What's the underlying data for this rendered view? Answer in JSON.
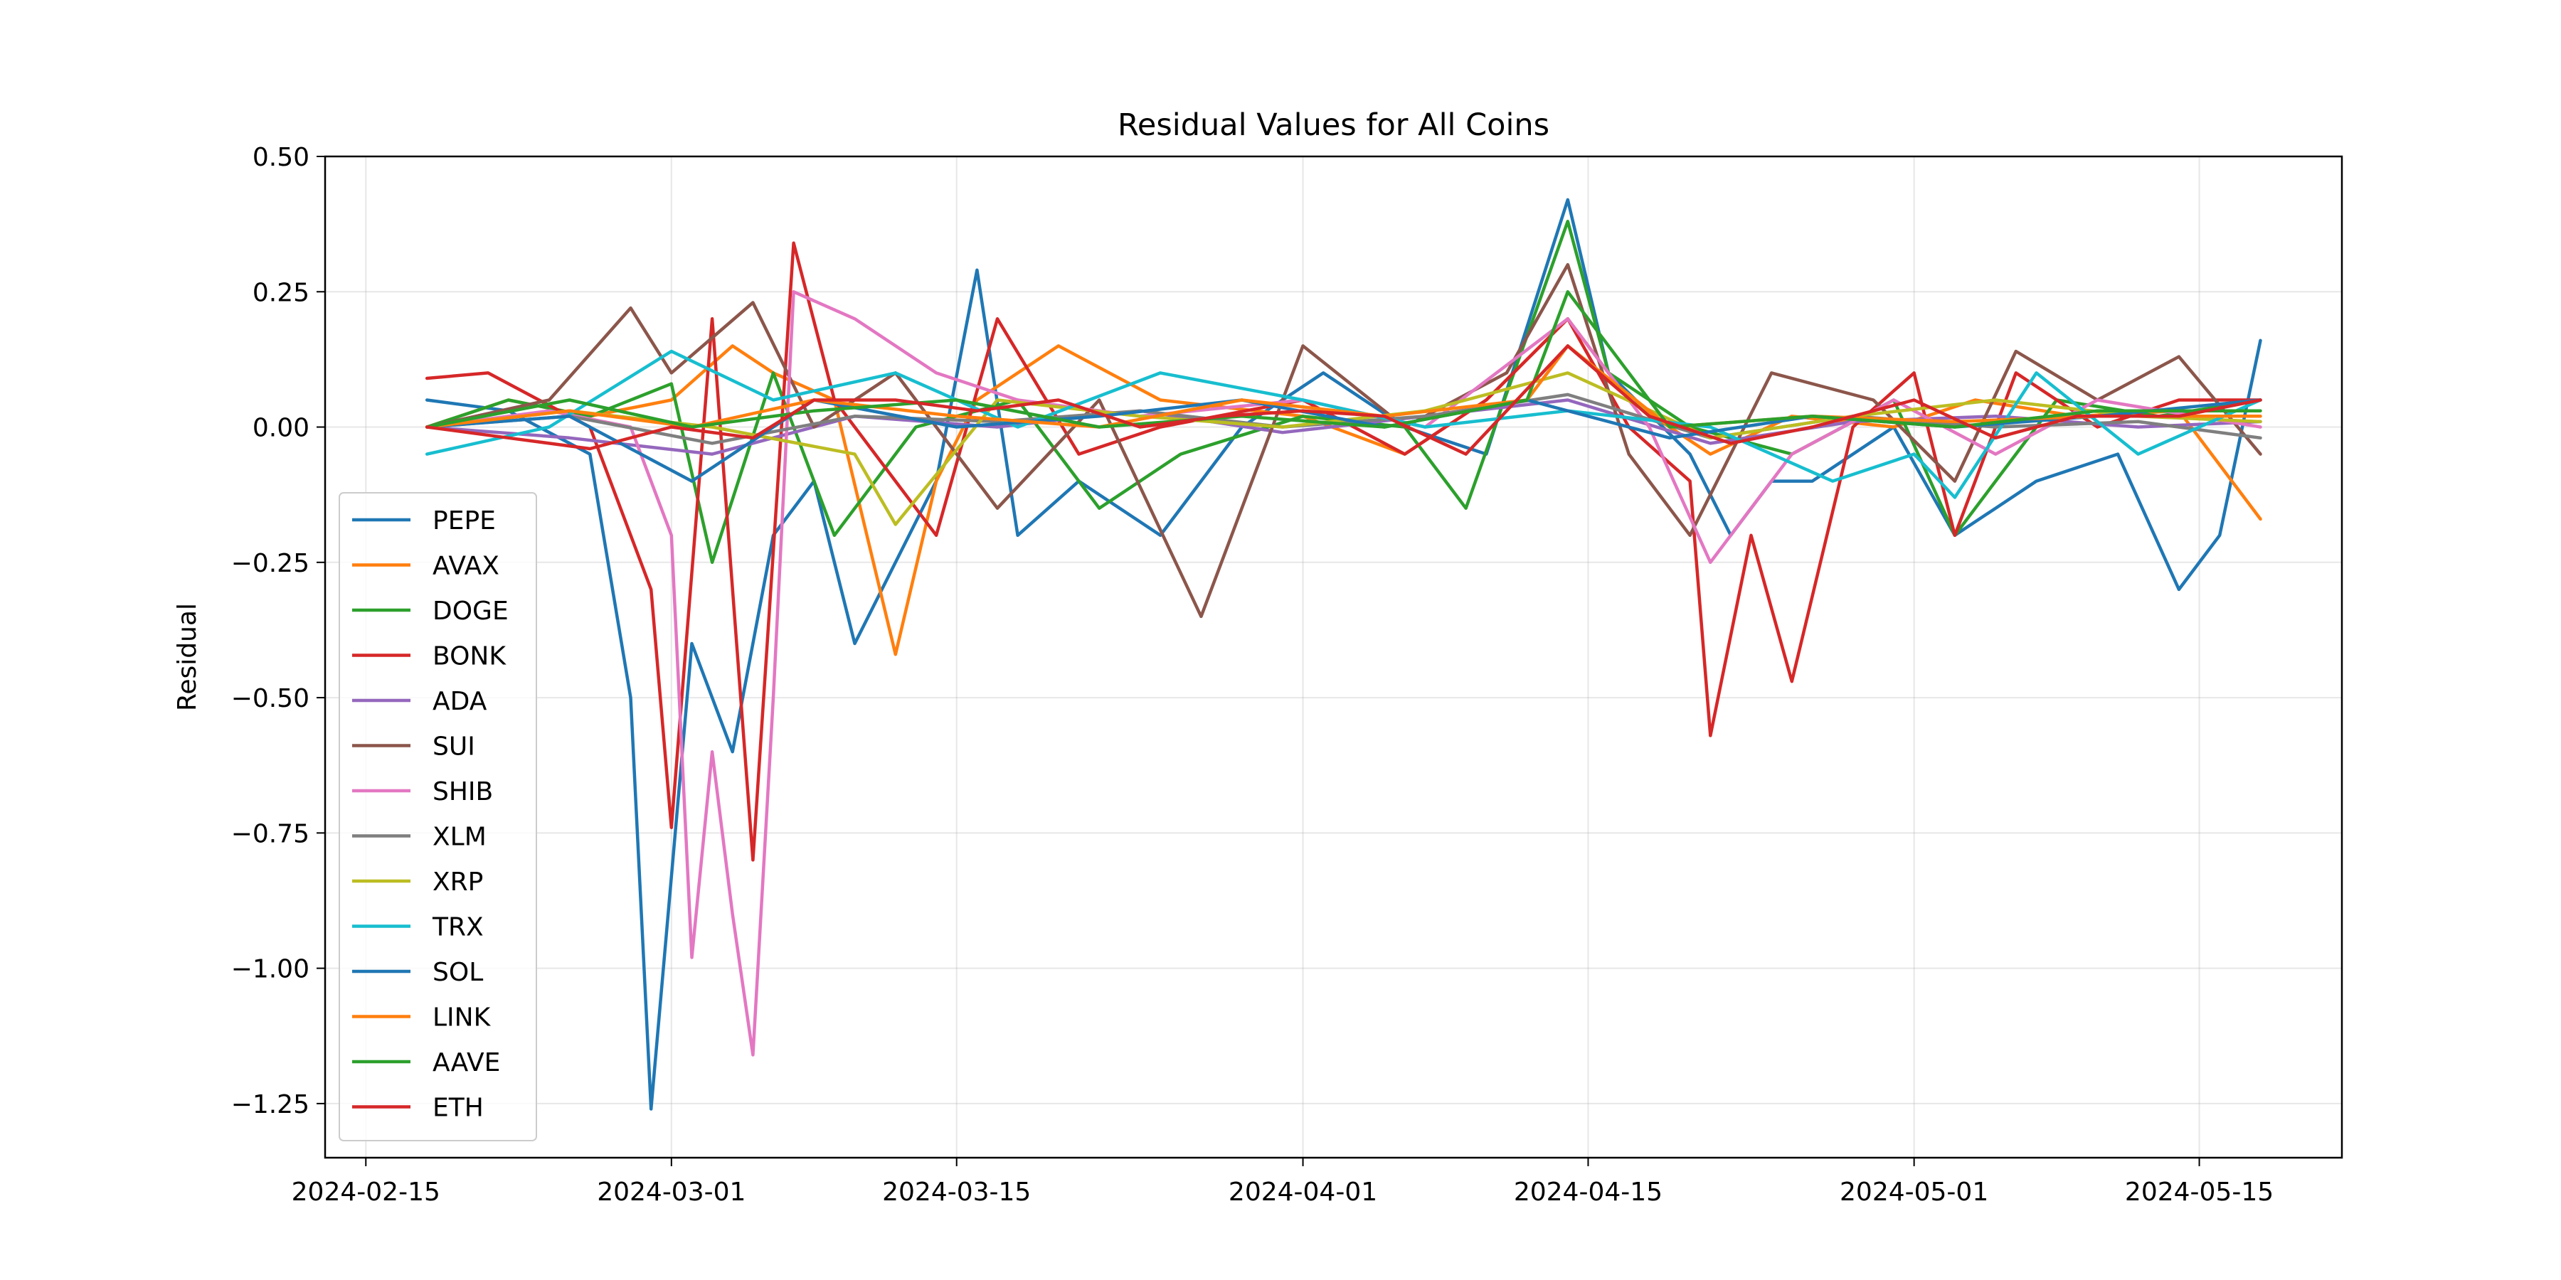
{
  "chart_data": {
    "type": "line",
    "title": "Residual Values for All Coins",
    "xlabel": "",
    "ylabel": "Residual",
    "x_axis_type": "date",
    "xlim": [
      "2024-02-13",
      "2024-05-22"
    ],
    "ylim": [
      -1.35,
      0.5
    ],
    "x_ticks": [
      "2024-02-15",
      "2024-03-01",
      "2024-03-15",
      "2024-04-01",
      "2024-04-15",
      "2024-05-01",
      "2024-05-15"
    ],
    "y_ticks": [
      0.5,
      0.25,
      0.0,
      -0.25,
      -0.5,
      -0.75,
      -1.0,
      -1.25
    ],
    "y_tick_labels": [
      "0.50",
      "0.25",
      "0.00",
      "−0.25",
      "−0.50",
      "−0.75",
      "−1.00",
      "−1.25"
    ],
    "grid": true,
    "legend_position": "lower-left",
    "series": [
      {
        "name": "PEPE",
        "color": "#1f77b4",
        "x": [
          "2024-02-18",
          "2024-02-22",
          "2024-02-26",
          "2024-02-28",
          "2024-02-29",
          "2024-03-02",
          "2024-03-04",
          "2024-03-06",
          "2024-03-08",
          "2024-03-10",
          "2024-03-14",
          "2024-03-16",
          "2024-03-18",
          "2024-03-21",
          "2024-03-25",
          "2024-03-29",
          "2024-04-02",
          "2024-04-06",
          "2024-04-10",
          "2024-04-14",
          "2024-04-16",
          "2024-04-20",
          "2024-04-22",
          "2024-04-24",
          "2024-04-26",
          "2024-04-30",
          "2024-05-03",
          "2024-05-07",
          "2024-05-11",
          "2024-05-14",
          "2024-05-16",
          "2024-05-18"
        ],
        "y": [
          0.05,
          0.03,
          -0.05,
          -0.5,
          -1.26,
          -0.4,
          -0.6,
          -0.2,
          -0.1,
          -0.4,
          -0.1,
          0.29,
          -0.2,
          -0.1,
          -0.2,
          0.0,
          0.1,
          0.0,
          -0.05,
          0.42,
          0.1,
          -0.05,
          -0.2,
          -0.1,
          -0.1,
          0.0,
          -0.2,
          -0.1,
          -0.05,
          -0.3,
          -0.2,
          0.16
        ]
      },
      {
        "name": "AVAX",
        "color": "#ff7f0e",
        "x": [
          "2024-02-18",
          "2024-02-22",
          "2024-02-26",
          "2024-03-01",
          "2024-03-04",
          "2024-03-06",
          "2024-03-09",
          "2024-03-12",
          "2024-03-14",
          "2024-03-16",
          "2024-03-20",
          "2024-03-25",
          "2024-04-01",
          "2024-04-06",
          "2024-04-10",
          "2024-04-14",
          "2024-04-17",
          "2024-04-21",
          "2024-04-25",
          "2024-04-30",
          "2024-05-04",
          "2024-05-09",
          "2024-05-14",
          "2024-05-18"
        ],
        "y": [
          0.0,
          0.05,
          0.02,
          0.05,
          0.15,
          0.1,
          0.05,
          -0.42,
          -0.1,
          0.05,
          0.15,
          0.05,
          0.02,
          -0.05,
          0.05,
          0.2,
          0.05,
          -0.05,
          0.02,
          0.0,
          0.05,
          0.02,
          0.03,
          -0.17
        ]
      },
      {
        "name": "DOGE",
        "color": "#2ca02c",
        "x": [
          "2024-02-18",
          "2024-02-22",
          "2024-02-26",
          "2024-03-01",
          "2024-03-03",
          "2024-03-06",
          "2024-03-09",
          "2024-03-13",
          "2024-03-18",
          "2024-03-22",
          "2024-03-26",
          "2024-04-01",
          "2024-04-06",
          "2024-04-09",
          "2024-04-14",
          "2024-04-16",
          "2024-04-20",
          "2024-04-25",
          "2024-04-30",
          "2024-05-03",
          "2024-05-08",
          "2024-05-13",
          "2024-05-18"
        ],
        "y": [
          0.0,
          0.05,
          0.02,
          0.08,
          -0.25,
          0.1,
          -0.2,
          0.0,
          0.05,
          -0.15,
          -0.05,
          0.02,
          0.0,
          -0.15,
          0.38,
          0.1,
          0.0,
          -0.05,
          0.05,
          -0.2,
          0.05,
          0.02,
          0.05
        ]
      },
      {
        "name": "BONK",
        "color": "#d62728",
        "x": [
          "2024-02-18",
          "2024-02-21",
          "2024-02-26",
          "2024-02-29",
          "2024-03-01",
          "2024-03-03",
          "2024-03-05",
          "2024-03-07",
          "2024-03-09",
          "2024-03-14",
          "2024-03-17",
          "2024-03-21",
          "2024-03-25",
          "2024-04-01",
          "2024-04-06",
          "2024-04-10",
          "2024-04-14",
          "2024-04-17",
          "2024-04-20",
          "2024-04-21",
          "2024-04-23",
          "2024-04-25",
          "2024-04-28",
          "2024-05-01",
          "2024-05-03",
          "2024-05-06",
          "2024-05-10",
          "2024-05-14",
          "2024-05-18"
        ],
        "y": [
          0.09,
          0.1,
          0.0,
          -0.3,
          -0.74,
          0.2,
          -0.8,
          0.34,
          0.05,
          -0.2,
          0.2,
          -0.05,
          0.0,
          0.05,
          -0.05,
          0.05,
          0.2,
          0.0,
          -0.1,
          -0.57,
          -0.2,
          -0.47,
          0.0,
          0.1,
          -0.2,
          0.1,
          0.0,
          0.05,
          0.05
        ]
      },
      {
        "name": "ADA",
        "color": "#9467bd",
        "x": [
          "2024-02-18",
          "2024-02-25",
          "2024-03-03",
          "2024-03-10",
          "2024-03-17",
          "2024-03-24",
          "2024-03-31",
          "2024-04-07",
          "2024-04-14",
          "2024-04-21",
          "2024-04-28",
          "2024-05-05",
          "2024-05-12",
          "2024-05-18"
        ],
        "y": [
          0.0,
          -0.02,
          -0.05,
          0.02,
          0.0,
          0.03,
          -0.01,
          0.02,
          0.05,
          -0.03,
          0.01,
          0.02,
          0.0,
          0.01
        ]
      },
      {
        "name": "SUI",
        "color": "#8c564b",
        "x": [
          "2024-02-18",
          "2024-02-24",
          "2024-02-28",
          "2024-03-01",
          "2024-03-05",
          "2024-03-08",
          "2024-03-12",
          "2024-03-17",
          "2024-03-22",
          "2024-03-27",
          "2024-04-01",
          "2024-04-06",
          "2024-04-11",
          "2024-04-14",
          "2024-04-17",
          "2024-04-20",
          "2024-04-24",
          "2024-04-29",
          "2024-05-03",
          "2024-05-06",
          "2024-05-10",
          "2024-05-14",
          "2024-05-18"
        ],
        "y": [
          0.0,
          0.05,
          0.22,
          0.1,
          0.23,
          0.0,
          0.1,
          -0.15,
          0.05,
          -0.35,
          0.15,
          0.0,
          0.1,
          0.3,
          -0.05,
          -0.2,
          0.1,
          0.05,
          -0.1,
          0.14,
          0.05,
          0.13,
          -0.05
        ]
      },
      {
        "name": "SHIB",
        "color": "#e377c2",
        "x": [
          "2024-02-18",
          "2024-02-24",
          "2024-02-28",
          "2024-03-01",
          "2024-03-02",
          "2024-03-03",
          "2024-03-04",
          "2024-03-05",
          "2024-03-06",
          "2024-03-07",
          "2024-03-10",
          "2024-03-14",
          "2024-03-18",
          "2024-03-24",
          "2024-04-01",
          "2024-04-07",
          "2024-04-14",
          "2024-04-18",
          "2024-04-21",
          "2024-04-25",
          "2024-04-30",
          "2024-05-05",
          "2024-05-10",
          "2024-05-18"
        ],
        "y": [
          0.0,
          0.03,
          0.0,
          -0.2,
          -0.98,
          -0.6,
          -0.9,
          -1.16,
          -0.5,
          0.25,
          0.2,
          0.1,
          0.05,
          0.02,
          0.05,
          0.0,
          0.2,
          0.0,
          -0.25,
          -0.05,
          0.05,
          -0.05,
          0.05,
          0.0
        ]
      },
      {
        "name": "XLM",
        "color": "#7f7f7f",
        "x": [
          "2024-02-18",
          "2024-02-25",
          "2024-03-03",
          "2024-03-10",
          "2024-03-17",
          "2024-03-24",
          "2024-03-31",
          "2024-04-07",
          "2024-04-14",
          "2024-04-21",
          "2024-04-28",
          "2024-05-05",
          "2024-05-12",
          "2024-05-18"
        ],
        "y": [
          0.0,
          0.02,
          -0.03,
          0.02,
          0.01,
          0.03,
          0.0,
          0.02,
          0.06,
          -0.02,
          0.02,
          0.0,
          0.01,
          -0.02
        ]
      },
      {
        "name": "XRP",
        "color": "#bcbd22",
        "x": [
          "2024-02-18",
          "2024-02-25",
          "2024-03-03",
          "2024-03-10",
          "2024-03-12",
          "2024-03-17",
          "2024-03-24",
          "2024-03-31",
          "2024-04-07",
          "2024-04-14",
          "2024-04-21",
          "2024-04-28",
          "2024-05-05",
          "2024-05-12",
          "2024-05-18"
        ],
        "y": [
          0.0,
          0.03,
          0.0,
          -0.05,
          -0.18,
          0.05,
          0.02,
          0.0,
          0.03,
          0.1,
          -0.02,
          0.02,
          0.05,
          0.02,
          0.01
        ]
      },
      {
        "name": "TRX",
        "color": "#17becf",
        "x": [
          "2024-02-18",
          "2024-02-24",
          "2024-03-01",
          "2024-03-06",
          "2024-03-12",
          "2024-03-18",
          "2024-03-25",
          "2024-04-01",
          "2024-04-07",
          "2024-04-14",
          "2024-04-21",
          "2024-04-27",
          "2024-05-01",
          "2024-05-03",
          "2024-05-07",
          "2024-05-12",
          "2024-05-18"
        ],
        "y": [
          -0.05,
          0.0,
          0.14,
          0.05,
          0.1,
          0.0,
          0.1,
          0.05,
          0.0,
          0.03,
          0.0,
          -0.1,
          -0.05,
          -0.13,
          0.1,
          -0.05,
          0.05
        ]
      },
      {
        "name": "SOL",
        "color": "#1f77b4",
        "x": [
          "2024-02-18",
          "2024-02-25",
          "2024-03-02",
          "2024-03-08",
          "2024-03-15",
          "2024-03-22",
          "2024-03-29",
          "2024-04-05",
          "2024-04-12",
          "2024-04-19",
          "2024-04-26",
          "2024-05-03",
          "2024-05-10",
          "2024-05-18"
        ],
        "y": [
          0.0,
          0.02,
          -0.1,
          0.05,
          0.0,
          0.02,
          0.05,
          0.0,
          0.05,
          -0.02,
          0.02,
          0.0,
          0.02,
          0.05
        ]
      },
      {
        "name": "LINK",
        "color": "#ff7f0e",
        "x": [
          "2024-02-18",
          "2024-02-25",
          "2024-03-02",
          "2024-03-08",
          "2024-03-15",
          "2024-03-22",
          "2024-03-29",
          "2024-04-05",
          "2024-04-12",
          "2024-04-14",
          "2024-04-19",
          "2024-04-26",
          "2024-05-03",
          "2024-05-10",
          "2024-05-18"
        ],
        "y": [
          0.0,
          0.03,
          0.0,
          0.05,
          0.02,
          0.0,
          0.05,
          0.02,
          0.05,
          0.15,
          0.0,
          0.02,
          0.01,
          0.02,
          0.02
        ]
      },
      {
        "name": "AAVE",
        "color": "#2ca02c",
        "x": [
          "2024-02-18",
          "2024-02-25",
          "2024-03-02",
          "2024-03-08",
          "2024-03-15",
          "2024-03-22",
          "2024-03-29",
          "2024-04-05",
          "2024-04-12",
          "2024-04-14",
          "2024-04-19",
          "2024-04-26",
          "2024-05-03",
          "2024-05-10",
          "2024-05-18"
        ],
        "y": [
          0.0,
          0.05,
          0.0,
          0.03,
          0.05,
          0.0,
          0.02,
          0.0,
          0.05,
          0.25,
          0.0,
          0.02,
          0.0,
          0.03,
          0.03
        ]
      },
      {
        "name": "ETH",
        "color": "#d62728",
        "x": [
          "2024-02-18",
          "2024-02-22",
          "2024-02-26",
          "2024-03-01",
          "2024-03-05",
          "2024-03-08",
          "2024-03-12",
          "2024-03-16",
          "2024-03-20",
          "2024-03-24",
          "2024-03-28",
          "2024-04-01",
          "2024-04-05",
          "2024-04-09",
          "2024-04-14",
          "2024-04-18",
          "2024-04-22",
          "2024-04-26",
          "2024-05-01",
          "2024-05-05",
          "2024-05-09",
          "2024-05-14",
          "2024-05-18"
        ],
        "y": [
          0.0,
          -0.02,
          -0.04,
          0.0,
          -0.02,
          0.05,
          0.05,
          0.03,
          0.05,
          0.0,
          0.02,
          0.03,
          0.02,
          -0.05,
          0.15,
          0.02,
          -0.03,
          0.0,
          0.05,
          -0.02,
          0.02,
          0.02,
          0.05
        ]
      }
    ]
  }
}
